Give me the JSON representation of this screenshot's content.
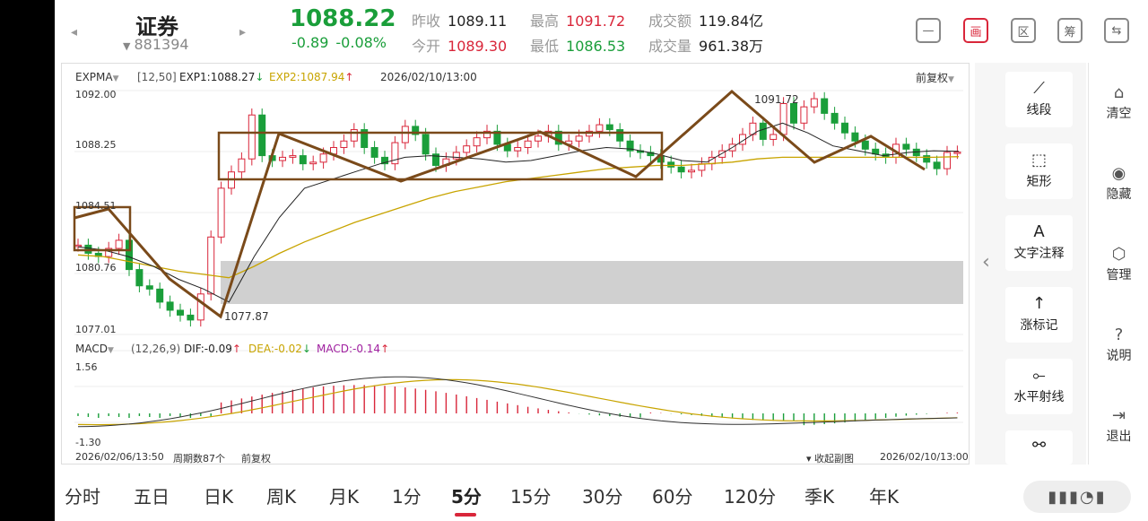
{
  "header": {
    "name": "证券",
    "code": "881394",
    "price": "1088.22",
    "change": "-0.89",
    "change_pct": "-0.08%",
    "prev_close_label": "昨收",
    "prev_close": "1089.11",
    "open_label": "今开",
    "open": "1089.30",
    "high_label": "最高",
    "high": "1091.72",
    "low_label": "最低",
    "low": "1086.53",
    "amount_label": "成交额",
    "amount": "119.84亿",
    "volume_label": "成交量",
    "volume": "961.38万",
    "buttons": [
      {
        "name": "minus-icon",
        "label": "—"
      },
      {
        "name": "draw-icon",
        "label": "画"
      },
      {
        "name": "zone-icon",
        "label": "区"
      },
      {
        "name": "chip-icon",
        "label": "筹"
      },
      {
        "name": "rotate-icon",
        "label": "⇆"
      }
    ]
  },
  "chart": {
    "indicator": "EXPMA",
    "params": "[12,50]",
    "exp1_label": "EXP1:1088.27",
    "exp2_label": "EXP2:1087.94",
    "date": "2026/02/10/13:00",
    "adjust": "前复权",
    "y_labels": [
      "1092.00",
      "1088.25",
      "1084.51",
      "1080.76",
      "1077.01"
    ],
    "high_mark": "1091.72",
    "low_mark": "1077.87",
    "macd_indicator": "MACD",
    "macd_params": "(12,26,9)",
    "dif_label": "DIF:-0.09",
    "dea_label": "DEA:-0.02",
    "macd_label": "MACD:-0.14",
    "macd_top": "1.56",
    "macd_bottom": "-1.30",
    "foot_start": "2026/02/06/13:50",
    "foot_count": "周期数87个",
    "foot_adjust": "前复权",
    "foot_collapse": "收起副图",
    "foot_end": "2026/02/10/13:00",
    "colors": {
      "up": "#d9263a",
      "down": "#1a9e3a",
      "exp1": "#222222",
      "exp2": "#c8a400",
      "annot": "#7a4a1a",
      "dea": "#c8a400",
      "macd": "#a020a0"
    }
  },
  "chart_data": {
    "type": "line",
    "title": "",
    "series": [
      {
        "name": "EXP1",
        "values": [
          1082.4,
          1082.2,
          1081.8,
          1081.2,
          1080.4,
          1079.8,
          1079.0,
          1081.8,
          1084.2,
          1086.0,
          1086.5,
          1087.0,
          1087.5,
          1087.9,
          1088.0,
          1087.9,
          1087.8,
          1087.6,
          1087.7,
          1088.0,
          1088.3,
          1088.5,
          1088.4,
          1088.1,
          1087.7,
          1087.6,
          1088.5,
          1089.5,
          1090.0,
          1089.4,
          1088.6,
          1088.3,
          1088.0,
          1088.2,
          1088.3,
          1088.27
        ]
      },
      {
        "name": "EXP2",
        "values": [
          1081.9,
          1081.8,
          1081.5,
          1081.2,
          1080.9,
          1080.7,
          1080.5,
          1081.2,
          1082.0,
          1082.7,
          1083.3,
          1083.9,
          1084.4,
          1084.9,
          1085.4,
          1085.8,
          1086.1,
          1086.4,
          1086.6,
          1086.8,
          1087.0,
          1087.2,
          1087.3,
          1087.4,
          1087.4,
          1087.5,
          1087.6,
          1087.8,
          1087.9,
          1087.9,
          1087.9,
          1087.9,
          1087.9,
          1087.9,
          1087.9,
          1087.94
        ]
      }
    ],
    "ylim": [
      1077.01,
      1092.0
    ]
  },
  "tools": [
    {
      "name": "segment",
      "icon": "⟋",
      "label": "线段"
    },
    {
      "name": "rectangle",
      "icon": "⬚",
      "label": "矩形"
    },
    {
      "name": "text-note",
      "icon": "A",
      "label": "文字注释"
    },
    {
      "name": "up-mark",
      "icon": "↑",
      "label": "涨标记"
    },
    {
      "name": "horizontal-ray",
      "icon": "⟜",
      "label": "水平射线"
    }
  ],
  "right_actions": [
    {
      "name": "clear",
      "icon": "⌂",
      "label": "清空"
    },
    {
      "name": "hide",
      "icon": "◉",
      "label": "隐藏"
    },
    {
      "name": "manage",
      "icon": "⬡",
      "label": "管理"
    },
    {
      "name": "help",
      "icon": "?",
      "label": "说明"
    },
    {
      "name": "exit",
      "icon": "⇥",
      "label": "退出"
    }
  ],
  "tabs": [
    "分时",
    "五日",
    "日K",
    "周K",
    "月K",
    "1分",
    "5分",
    "15分",
    "30分",
    "60分",
    "120分",
    "季K",
    "年K"
  ],
  "active_tab": "5分"
}
